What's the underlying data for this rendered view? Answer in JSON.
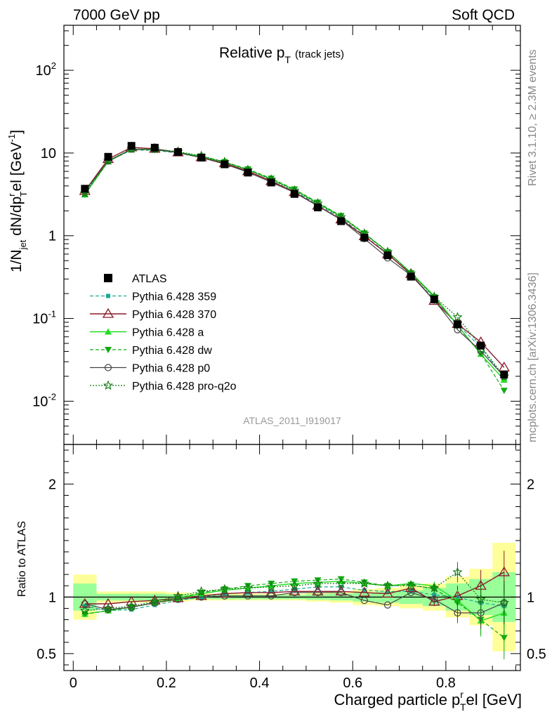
{
  "header": {
    "left": "7000 GeV pp",
    "right": "Soft QCD"
  },
  "side": {
    "rivet": "Rivet 3.1.10, ≥ 2.3M events",
    "mcplots": "mcplots.cern.ch [arXiv:1306.3436]"
  },
  "plot": {
    "title_main": "Relative p",
    "title_sub": "T",
    "title_tag": "(track jets)",
    "analysis": "ATLAS_2011_I919017",
    "ylabel_main": "1/N",
    "ylabel_sub_jet": "jet",
    "ylabel_mid": " dN/dp",
    "ylabel_sup_r": "r",
    "ylabel_sub_T": "T",
    "ylabel_end": "el [GeV",
    "ylabel_sup_inv": "-1",
    "ylabel_close": "]",
    "ratio_ylabel": "Ratio to ATLAS",
    "xlabel_main": "Charged particle p",
    "xlabel_sup": "r",
    "xlabel_sub": "T",
    "xlabel_end": "el [GeV]"
  },
  "legend": [
    "ATLAS",
    "Pythia 6.428 359",
    "Pythia 6.428 370",
    "Pythia 6.428 a",
    "Pythia 6.428 dw",
    "Pythia 6.428 p0",
    "Pythia 6.428 pro-q2o"
  ],
  "colors": {
    "data": "#000000",
    "s359": "#1aa890",
    "s370": "#8b1a2a",
    "sa": "#22dd22",
    "sdw": "#11aa11",
    "sp0": "#444444",
    "spro": "#117711",
    "band_yellow": "#ffff99",
    "band_green": "#99ff99"
  },
  "chart_data": {
    "type": "line",
    "title": "Relative pT (track jets)",
    "xlabel": "Charged particle pTrel [GeV]",
    "ylabel": "1/Njet dN/dpTrel [GeV-1]",
    "xlim": [
      -0.02,
      0.96
    ],
    "ylim": [
      0.003,
      350
    ],
    "yscale": "log",
    "ratio_ylim": [
      0.35,
      2.35
    ],
    "x": [
      0.025,
      0.075,
      0.125,
      0.175,
      0.225,
      0.275,
      0.325,
      0.375,
      0.425,
      0.475,
      0.525,
      0.575,
      0.625,
      0.675,
      0.725,
      0.775,
      0.825,
      0.875,
      0.925
    ],
    "x_ticks": [
      "0",
      "0.2",
      "0.4",
      "0.6",
      "0.8"
    ],
    "x_tick_values": [
      0,
      0.2,
      0.4,
      0.6,
      0.8
    ],
    "y_ticks": [
      "10^-2",
      "10^-1",
      "1",
      "10",
      "10^2"
    ],
    "ratio_y_ticks": [
      "0.5",
      "1",
      "2"
    ],
    "data": {
      "name": "ATLAS",
      "values": [
        3.7,
        9.0,
        12.2,
        11.6,
        10.3,
        8.8,
        7.3,
        5.8,
        4.4,
        3.2,
        2.2,
        1.5,
        0.95,
        0.58,
        0.32,
        0.17,
        0.085,
        0.047,
        0.021
      ],
      "band_yellow_rel": [
        0.2,
        0.05,
        0.05,
        0.05,
        0.04,
        0.03,
        0.03,
        0.03,
        0.03,
        0.03,
        0.04,
        0.05,
        0.07,
        0.08,
        0.1,
        0.12,
        0.18,
        0.25,
        0.48
      ],
      "band_green_rel": [
        0.12,
        0.03,
        0.03,
        0.03,
        0.025,
        0.02,
        0.02,
        0.02,
        0.02,
        0.02,
        0.025,
        0.03,
        0.04,
        0.05,
        0.06,
        0.08,
        0.12,
        0.16,
        0.22
      ]
    },
    "series": [
      {
        "name": "Pythia 6.428 359",
        "ratio": [
          0.92,
          0.88,
          0.89,
          0.93,
          0.97,
          1.0,
          1.03,
          1.04,
          1.05,
          1.07,
          1.09,
          1.09,
          1.06,
          1.05,
          1.05,
          1.02,
          1.0,
          0.95,
          0.92
        ]
      },
      {
        "name": "Pythia 6.428 370",
        "ratio": [
          0.94,
          0.94,
          0.96,
          0.97,
          0.99,
          1.01,
          1.03,
          1.04,
          1.04,
          1.05,
          1.05,
          1.05,
          1.04,
          1.03,
          1.08,
          0.96,
          1.01,
          1.1,
          1.22
        ]
      },
      {
        "name": "Pythia 6.428 a",
        "ratio": [
          0.85,
          0.88,
          0.91,
          0.95,
          0.99,
          1.03,
          1.06,
          1.08,
          1.1,
          1.12,
          1.13,
          1.14,
          1.12,
          1.1,
          1.12,
          1.1,
          0.97,
          0.79,
          0.86
        ]
      },
      {
        "name": "Pythia 6.428 dw",
        "ratio": [
          0.85,
          0.88,
          0.91,
          0.95,
          0.99,
          1.04,
          1.07,
          1.1,
          1.12,
          1.14,
          1.15,
          1.16,
          1.13,
          1.1,
          1.11,
          1.07,
          0.95,
          0.8,
          0.64
        ]
      },
      {
        "name": "Pythia 6.428 p0",
        "ratio": [
          0.94,
          0.89,
          0.91,
          0.95,
          0.98,
          1.0,
          1.01,
          1.01,
          1.01,
          1.04,
          1.04,
          1.04,
          0.97,
          0.93,
          1.04,
          0.98,
          0.86,
          0.86,
          0.95
        ]
      },
      {
        "name": "Pythia 6.428 pro-q2o",
        "ratio": [
          0.88,
          0.9,
          0.92,
          0.96,
          1.01,
          1.05,
          1.07,
          1.08,
          1.09,
          1.1,
          1.12,
          1.12,
          1.12,
          1.1,
          1.1,
          1.08,
          1.22,
          0.98,
          0.95
        ]
      }
    ]
  }
}
